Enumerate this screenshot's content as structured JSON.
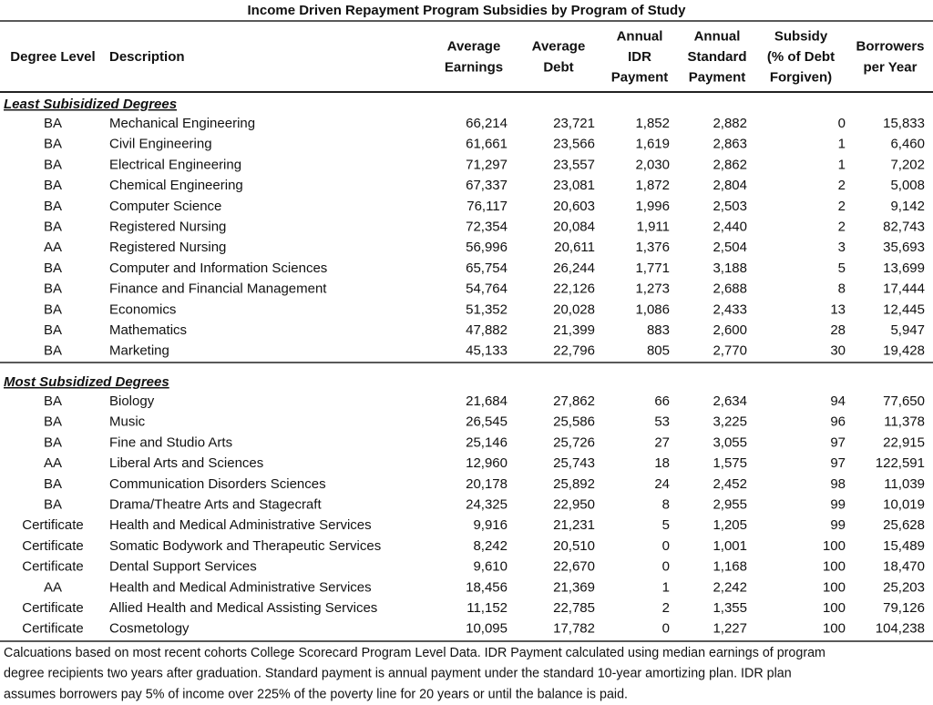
{
  "title": "Income Driven Repayment Program Subsidies by Program of Study",
  "columns": [
    [
      "Degree Level"
    ],
    [
      "Description"
    ],
    [
      "Average",
      "Earnings"
    ],
    [
      "Average",
      "Debt"
    ],
    [
      "Annual",
      "IDR",
      "Payment"
    ],
    [
      "Annual",
      "Standard",
      "Payment"
    ],
    [
      "Subsidy",
      "(% of Debt",
      "Forgiven)"
    ],
    [
      "Borrowers",
      "per Year"
    ]
  ],
  "sections": [
    {
      "heading": "Least Subisidized Degrees",
      "rows": [
        [
          "BA",
          "Mechanical Engineering",
          "66,214",
          "23,721",
          "1,852",
          "2,882",
          "0",
          "15,833"
        ],
        [
          "BA",
          "Civil Engineering",
          "61,661",
          "23,566",
          "1,619",
          "2,863",
          "1",
          "6,460"
        ],
        [
          "BA",
          "Electrical Engineering",
          "71,297",
          "23,557",
          "2,030",
          "2,862",
          "1",
          "7,202"
        ],
        [
          "BA",
          "Chemical Engineering",
          "67,337",
          "23,081",
          "1,872",
          "2,804",
          "2",
          "5,008"
        ],
        [
          "BA",
          "Computer Science",
          "76,117",
          "20,603",
          "1,996",
          "2,503",
          "2",
          "9,142"
        ],
        [
          "BA",
          "Registered Nursing",
          "72,354",
          "20,084",
          "1,911",
          "2,440",
          "2",
          "82,743"
        ],
        [
          "AA",
          "Registered Nursing",
          "56,996",
          "20,611",
          "1,376",
          "2,504",
          "3",
          "35,693"
        ],
        [
          "BA",
          "Computer and Information Sciences",
          "65,754",
          "26,244",
          "1,771",
          "3,188",
          "5",
          "13,699"
        ],
        [
          "BA",
          "Finance and Financial Management",
          "54,764",
          "22,126",
          "1,273",
          "2,688",
          "8",
          "17,444"
        ],
        [
          "BA",
          "Economics",
          "51,352",
          "20,028",
          "1,086",
          "2,433",
          "13",
          "12,445"
        ],
        [
          "BA",
          "Mathematics",
          "47,882",
          "21,399",
          "883",
          "2,600",
          "28",
          "5,947"
        ],
        [
          "BA",
          "Marketing",
          "45,133",
          "22,796",
          "805",
          "2,770",
          "30",
          "19,428"
        ]
      ]
    },
    {
      "heading": "Most Subsidized Degrees",
      "rows": [
        [
          "BA",
          "Biology",
          "21,684",
          "27,862",
          "66",
          "2,634",
          "94",
          "77,650"
        ],
        [
          "BA",
          "Music",
          "26,545",
          "25,586",
          "53",
          "3,225",
          "96",
          "11,378"
        ],
        [
          "BA",
          "Fine and Studio Arts",
          "25,146",
          "25,726",
          "27",
          "3,055",
          "97",
          "22,915"
        ],
        [
          "AA",
          "Liberal Arts and Sciences",
          "12,960",
          "25,743",
          "18",
          "1,575",
          "97",
          "122,591"
        ],
        [
          "BA",
          "Communication Disorders Sciences",
          "20,178",
          "25,892",
          "24",
          "2,452",
          "98",
          "11,039"
        ],
        [
          "BA",
          "Drama/Theatre Arts and Stagecraft",
          "24,325",
          "22,950",
          "8",
          "2,955",
          "99",
          "10,019"
        ],
        [
          "Certificate",
          "Health and Medical Administrative Services",
          "9,916",
          "21,231",
          "5",
          "1,205",
          "99",
          "25,628"
        ],
        [
          "Certificate",
          "Somatic Bodywork and Therapeutic Services",
          "8,242",
          "20,510",
          "0",
          "1,001",
          "100",
          "15,489"
        ],
        [
          "Certificate",
          "Dental Support Services",
          "9,610",
          "22,670",
          "0",
          "1,168",
          "100",
          "18,470"
        ],
        [
          "AA",
          "Health and Medical Administrative Services",
          "18,456",
          "21,369",
          "1",
          "2,242",
          "100",
          "25,203"
        ],
        [
          "Certificate",
          "Allied Health and Medical Assisting Services",
          "11,152",
          "22,785",
          "2",
          "1,355",
          "100",
          "79,126"
        ],
        [
          "Certificate",
          "Cosmetology",
          "10,095",
          "17,782",
          "0",
          "1,227",
          "100",
          "104,238"
        ]
      ]
    }
  ],
  "footnote": [
    "Calcuations based on most recent cohorts College Scorecard Program Level Data. IDR Payment calculated using median earnings of program",
    "degree recipients two years after graduation. Standard payment is annual payment under the standard 10-year amortizing plan. IDR plan",
    "assumes borrowers pay 5% of income over 225% of the poverty line for 20 years or until the balance is paid."
  ]
}
